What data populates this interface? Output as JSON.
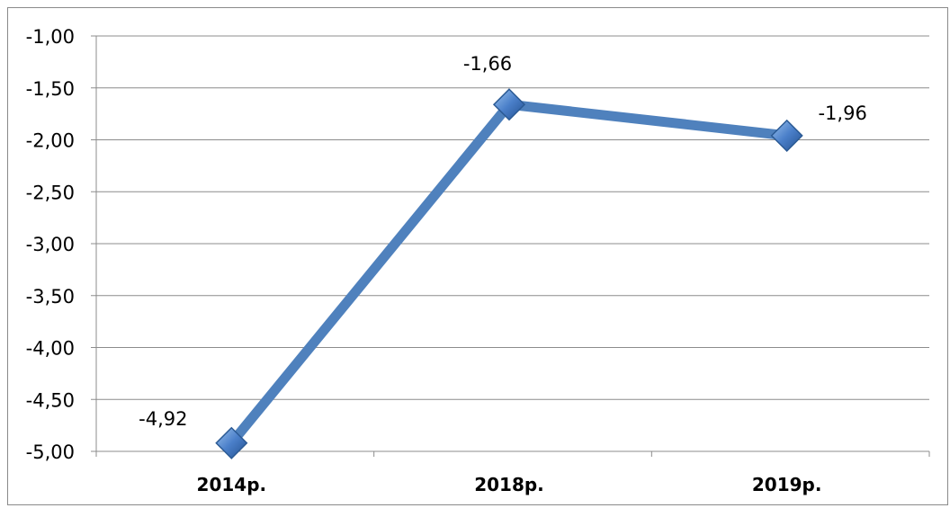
{
  "chart_data": {
    "type": "line",
    "categories": [
      "2014р.",
      "2018р.",
      "2019р."
    ],
    "values": [
      -4.92,
      -1.66,
      -1.96
    ],
    "data_labels": [
      "-4,92",
      "-1,66",
      "-1,96"
    ],
    "y_tick_labels": [
      "-1,00",
      "-1,50",
      "-2,00",
      "-2,50",
      "-3,00",
      "-3,50",
      "-4,00",
      "-4,50",
      "-5,00"
    ],
    "y_ticks": [
      -1.0,
      -1.5,
      -2.0,
      -2.5,
      -3.0,
      -3.5,
      -4.0,
      -4.5,
      -5.0
    ],
    "ylim": [
      -5.0,
      -1.0
    ],
    "grid": true,
    "legend": "none",
    "line_color": "#4f81bd",
    "marker": "diamond"
  }
}
